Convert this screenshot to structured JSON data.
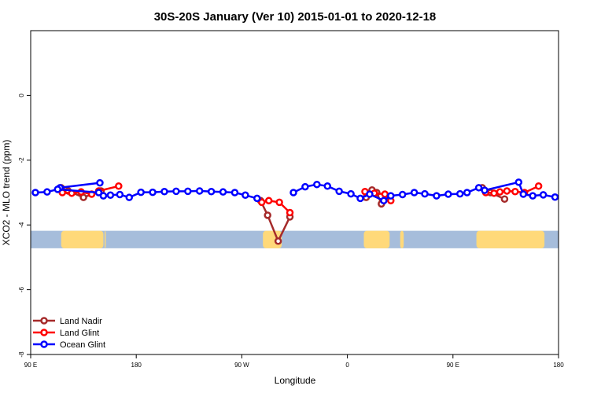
{
  "chart_data": {
    "type": "line",
    "title": "30S-20S January (Ver 10)   2015-01-01 to 2020-12-18",
    "xlabel": "Longitude",
    "ylabel": "XCO2 - MLO trend (ppm)",
    "xlim": [
      90,
      540
    ],
    "ylim": [
      -8,
      2
    ],
    "x_ticks": [
      {
        "value": 90,
        "label": "90 E"
      },
      {
        "value": 180,
        "label": "180"
      },
      {
        "value": 270,
        "label": "90 W"
      },
      {
        "value": 360,
        "label": "0"
      },
      {
        "value": 450,
        "label": "90 E"
      },
      {
        "value": 540,
        "label": "180"
      }
    ],
    "y_ticks": [
      {
        "value": -8,
        "label": "-8"
      },
      {
        "value": -6,
        "label": "-6"
      },
      {
        "value": -4,
        "label": "-4"
      },
      {
        "value": -2,
        "label": "-2"
      },
      {
        "value": 0,
        "label": "0"
      }
    ],
    "land_band": {
      "y_range": [
        -4.72,
        -4.18
      ],
      "ocean_color": "#a6bddb",
      "land_color": "#ffd97a",
      "land_segments": [
        [
          116,
          152
        ],
        [
          153,
          154
        ],
        [
          288,
          304
        ],
        [
          374,
          396
        ],
        [
          405,
          408
        ],
        [
          470,
          528
        ],
        [
          523,
          526
        ],
        [
          540,
          542
        ]
      ]
    },
    "series": [
      {
        "name": "Land Nadir",
        "color": "#a52a2a",
        "segments": [
          [
            [
              116,
              -2.85
            ],
            [
              122,
              -2.95
            ],
            [
              135,
              -3.15
            ],
            [
              150,
              -2.95
            ]
          ],
          [
            [
              286,
              -3.25
            ],
            [
              292,
              -3.7
            ],
            [
              301,
              -4.5
            ],
            [
              311,
              -3.75
            ]
          ],
          [
            [
              376,
              -3.15
            ],
            [
              381,
              -2.92
            ],
            [
              385,
              -3.0
            ],
            [
              389,
              -3.35
            ]
          ],
          [
            [
              475,
              -2.85
            ],
            [
              482,
              -3.0
            ],
            [
              494,
              -3.2
            ]
          ]
        ]
      },
      {
        "name": "Land Glint",
        "color": "#ff0000",
        "segments": [
          [
            [
              117,
              -3.0
            ],
            [
              125,
              -3.02
            ],
            [
              133,
              -2.98
            ],
            [
              142,
              -3.05
            ],
            [
              148,
              -2.95
            ],
            [
              165,
              -2.8
            ]
          ],
          [
            [
              287,
              -3.3
            ],
            [
              293,
              -3.25
            ],
            [
              302,
              -3.3
            ],
            [
              311,
              -3.62
            ]
          ],
          [
            [
              375,
              -2.97
            ],
            [
              383,
              -3.02
            ],
            [
              392,
              -3.05
            ],
            [
              397,
              -3.25
            ]
          ],
          [
            [
              478,
              -3.0
            ],
            [
              485,
              -3.02
            ],
            [
              490,
              -2.98
            ],
            [
              496,
              -2.95
            ],
            [
              503,
              -2.97
            ],
            [
              511,
              -3.0
            ],
            [
              523,
              -2.8
            ]
          ]
        ]
      },
      {
        "name": "Ocean Glint",
        "color": "#0000ff",
        "segments": [
          [
            [
              115,
              -2.85
            ],
            [
              149,
              -2.7
            ]
          ],
          [
            [
              94,
              -3.0
            ],
            [
              104,
              -2.98
            ],
            [
              113,
              -2.9
            ],
            [
              148,
              -3.0
            ],
            [
              152,
              -3.1
            ],
            [
              158,
              -3.08
            ],
            [
              166,
              -3.06
            ],
            [
              174,
              -3.15
            ],
            [
              184,
              -2.99
            ],
            [
              194,
              -2.99
            ],
            [
              204,
              -2.97
            ],
            [
              214,
              -2.96
            ],
            [
              224,
              -2.96
            ],
            [
              234,
              -2.95
            ],
            [
              244,
              -2.97
            ],
            [
              254,
              -2.98
            ],
            [
              264,
              -3.0
            ],
            [
              273,
              -3.08
            ],
            [
              283,
              -3.18
            ]
          ],
          [
            [
              314,
              -3.0
            ],
            [
              324,
              -2.82
            ],
            [
              334,
              -2.75
            ],
            [
              343,
              -2.8
            ],
            [
              353,
              -2.96
            ],
            [
              363,
              -3.04
            ],
            [
              371,
              -3.18
            ],
            [
              379,
              -3.05
            ],
            [
              391,
              -3.25
            ],
            [
              397,
              -3.1
            ],
            [
              407,
              -3.06
            ],
            [
              417,
              -3.0
            ],
            [
              426,
              -3.04
            ],
            [
              436,
              -3.1
            ],
            [
              446,
              -3.05
            ],
            [
              456,
              -3.04
            ],
            [
              462,
              -3.0
            ],
            [
              472,
              -2.85
            ],
            [
              477,
              -2.93
            ],
            [
              506,
              -2.68
            ],
            [
              510,
              -3.05
            ],
            [
              518,
              -3.1
            ],
            [
              527,
              -3.07
            ],
            [
              537,
              -3.14
            ]
          ]
        ]
      }
    ],
    "legend": {
      "position": "bottom-left",
      "entries": [
        "Land Nadir",
        "Land Glint",
        "Ocean Glint"
      ]
    }
  }
}
